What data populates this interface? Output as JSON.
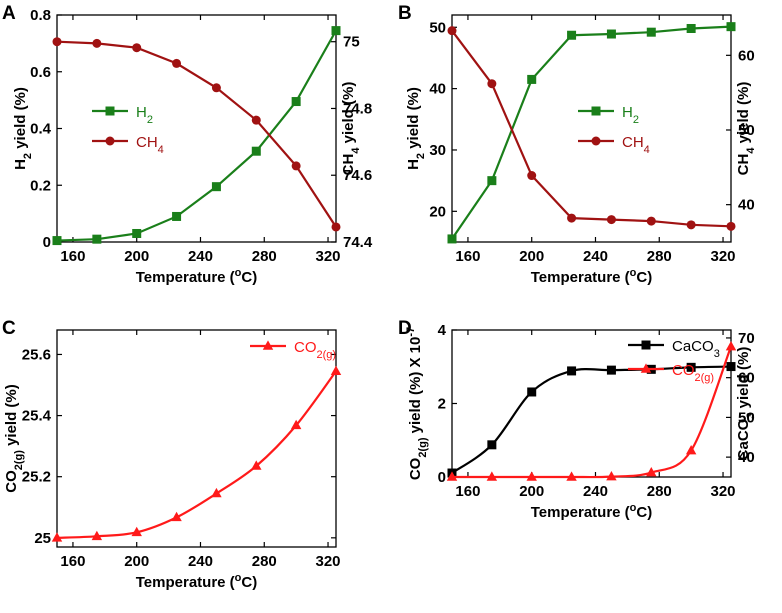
{
  "colors": {
    "green": "#1a7f1a",
    "darkred": "#a01212",
    "black": "#000000",
    "red": "#ff1a1a"
  },
  "chart_data": [
    {
      "panel": "A",
      "type": "line",
      "x": [
        150,
        175,
        200,
        225,
        250,
        275,
        300,
        325
      ],
      "xlabel": "Temperature (°C)",
      "xlim": [
        150,
        325
      ],
      "xticks": [
        160,
        200,
        240,
        280,
        320
      ],
      "y_axes": [
        {
          "label_main": "H",
          "label_sub": "2",
          "label_rest": " yield (%)",
          "lim": [
            0,
            0.8
          ],
          "ticks": [
            0,
            0.2,
            0.4,
            0.6,
            0.8
          ],
          "tick_labels": [
            "0",
            "0.2",
            "0.4",
            "0.6",
            "0.8"
          ]
        },
        {
          "label_main": "CH",
          "label_sub": "4",
          "label_rest": " yield (%)",
          "lim": [
            74.4,
            75.08
          ],
          "ticks": [
            74.4,
            74.6,
            74.8,
            75.0
          ],
          "tick_labels": [
            "74.4",
            "74.6",
            "74.8",
            "75"
          ]
        }
      ],
      "series": [
        {
          "name": "H2",
          "label_main": "H",
          "label_sub": "2",
          "axis": 0,
          "color": "green",
          "marker": "square",
          "values": [
            0.005,
            0.01,
            0.03,
            0.09,
            0.195,
            0.32,
            0.495,
            0.745
          ]
        },
        {
          "name": "CH4",
          "label_main": "CH",
          "label_sub": "4",
          "axis": 1,
          "color": "darkred",
          "marker": "circle",
          "values": [
            75.0,
            74.995,
            74.982,
            74.935,
            74.862,
            74.765,
            74.628,
            74.445
          ]
        }
      ],
      "legend_pos": "middle-left"
    },
    {
      "panel": "B",
      "type": "line",
      "x": [
        150,
        175,
        200,
        225,
        250,
        275,
        300,
        325
      ],
      "xlabel": "Temperature (°C)",
      "xlim": [
        150,
        325
      ],
      "xticks": [
        160,
        200,
        240,
        280,
        320
      ],
      "y_axes": [
        {
          "label_main": "H",
          "label_sub": "2",
          "label_rest": " yield (%)",
          "lim": [
            15,
            52
          ],
          "ticks": [
            20,
            30,
            40,
            50
          ],
          "tick_labels": [
            "20",
            "30",
            "40",
            "50"
          ]
        },
        {
          "label_main": "CH",
          "label_sub": "4",
          "label_rest": " yield (%)",
          "lim": [
            35,
            65.4
          ],
          "ticks": [
            40,
            50,
            60
          ],
          "tick_labels": [
            "40",
            "50",
            "60"
          ]
        }
      ],
      "series": [
        {
          "name": "H2",
          "label_main": "H",
          "label_sub": "2",
          "axis": 0,
          "color": "green",
          "marker": "square",
          "values": [
            15.5,
            25.0,
            41.5,
            48.7,
            48.9,
            49.2,
            49.8,
            50.1
          ]
        },
        {
          "name": "CH4",
          "label_main": "CH",
          "label_sub": "4",
          "axis": 1,
          "color": "darkred",
          "marker": "circle",
          "values": [
            63.3,
            56.2,
            43.9,
            38.2,
            38.0,
            37.8,
            37.3,
            37.1
          ]
        }
      ],
      "legend_pos": "middle-right"
    },
    {
      "panel": "C",
      "type": "line",
      "x": [
        150,
        175,
        200,
        225,
        250,
        275,
        300,
        325
      ],
      "xlabel": "Temperature (°C)",
      "xlim": [
        150,
        325
      ],
      "xticks": [
        160,
        200,
        240,
        280,
        320
      ],
      "y_axes": [
        {
          "label_main": "CO",
          "label_sub": "2(g)",
          "label_rest": " yield (%)",
          "lim": [
            24.97,
            25.68
          ],
          "ticks": [
            25.0,
            25.2,
            25.4,
            25.6
          ],
          "tick_labels": [
            "25",
            "25.2",
            "25.4",
            "25.6"
          ]
        }
      ],
      "series": [
        {
          "name": "CO2(g)",
          "label_main": "CO",
          "label_sub": "2(g)",
          "axis": 0,
          "color": "red",
          "marker": "triangle",
          "values": [
            25.0,
            25.005,
            25.018,
            25.067,
            25.145,
            25.235,
            25.368,
            25.545
          ]
        }
      ],
      "legend_pos": "top-right"
    },
    {
      "panel": "D",
      "type": "line",
      "x": [
        150,
        175,
        200,
        225,
        250,
        275,
        300,
        325
      ],
      "xlabel": "Temperature (°C)",
      "xlim": [
        150,
        325
      ],
      "xticks": [
        160,
        200,
        240,
        280,
        320
      ],
      "y_axes": [
        {
          "label_main": "CO",
          "label_sub": "2(g)",
          "label_rest": " yield (%) X 10",
          "label_sup": "-7",
          "lim": [
            0,
            4
          ],
          "ticks": [
            0,
            2,
            4
          ],
          "tick_labels": [
            "0",
            "2",
            "4"
          ]
        },
        {
          "label_main": "CaCO",
          "label_sub": "3",
          "label_rest": " yield (%)",
          "lim": [
            35,
            72
          ],
          "ticks": [
            40,
            50,
            60,
            70
          ],
          "tick_labels": [
            "40",
            "50",
            "60",
            "70"
          ]
        }
      ],
      "series": [
        {
          "name": "CaCO3",
          "label_main": "CaCO",
          "label_sub": "3",
          "axis": 1,
          "color": "black",
          "marker": "square",
          "values": [
            36.0,
            43.1,
            56.4,
            61.7,
            61.9,
            62.1,
            62.6,
            62.8
          ]
        },
        {
          "name": "CO2(g)",
          "label_main": "CO",
          "label_sub": "2(g)",
          "axis": 0,
          "color": "red",
          "marker": "triangle",
          "values": [
            0,
            0,
            0,
            0,
            0.01,
            0.12,
            0.72,
            3.55
          ]
        }
      ],
      "legend_pos": "top-right"
    }
  ],
  "temp_unit_prefix": "Temperature (",
  "temp_unit_sup": "o",
  "temp_unit_suffix": "C)"
}
